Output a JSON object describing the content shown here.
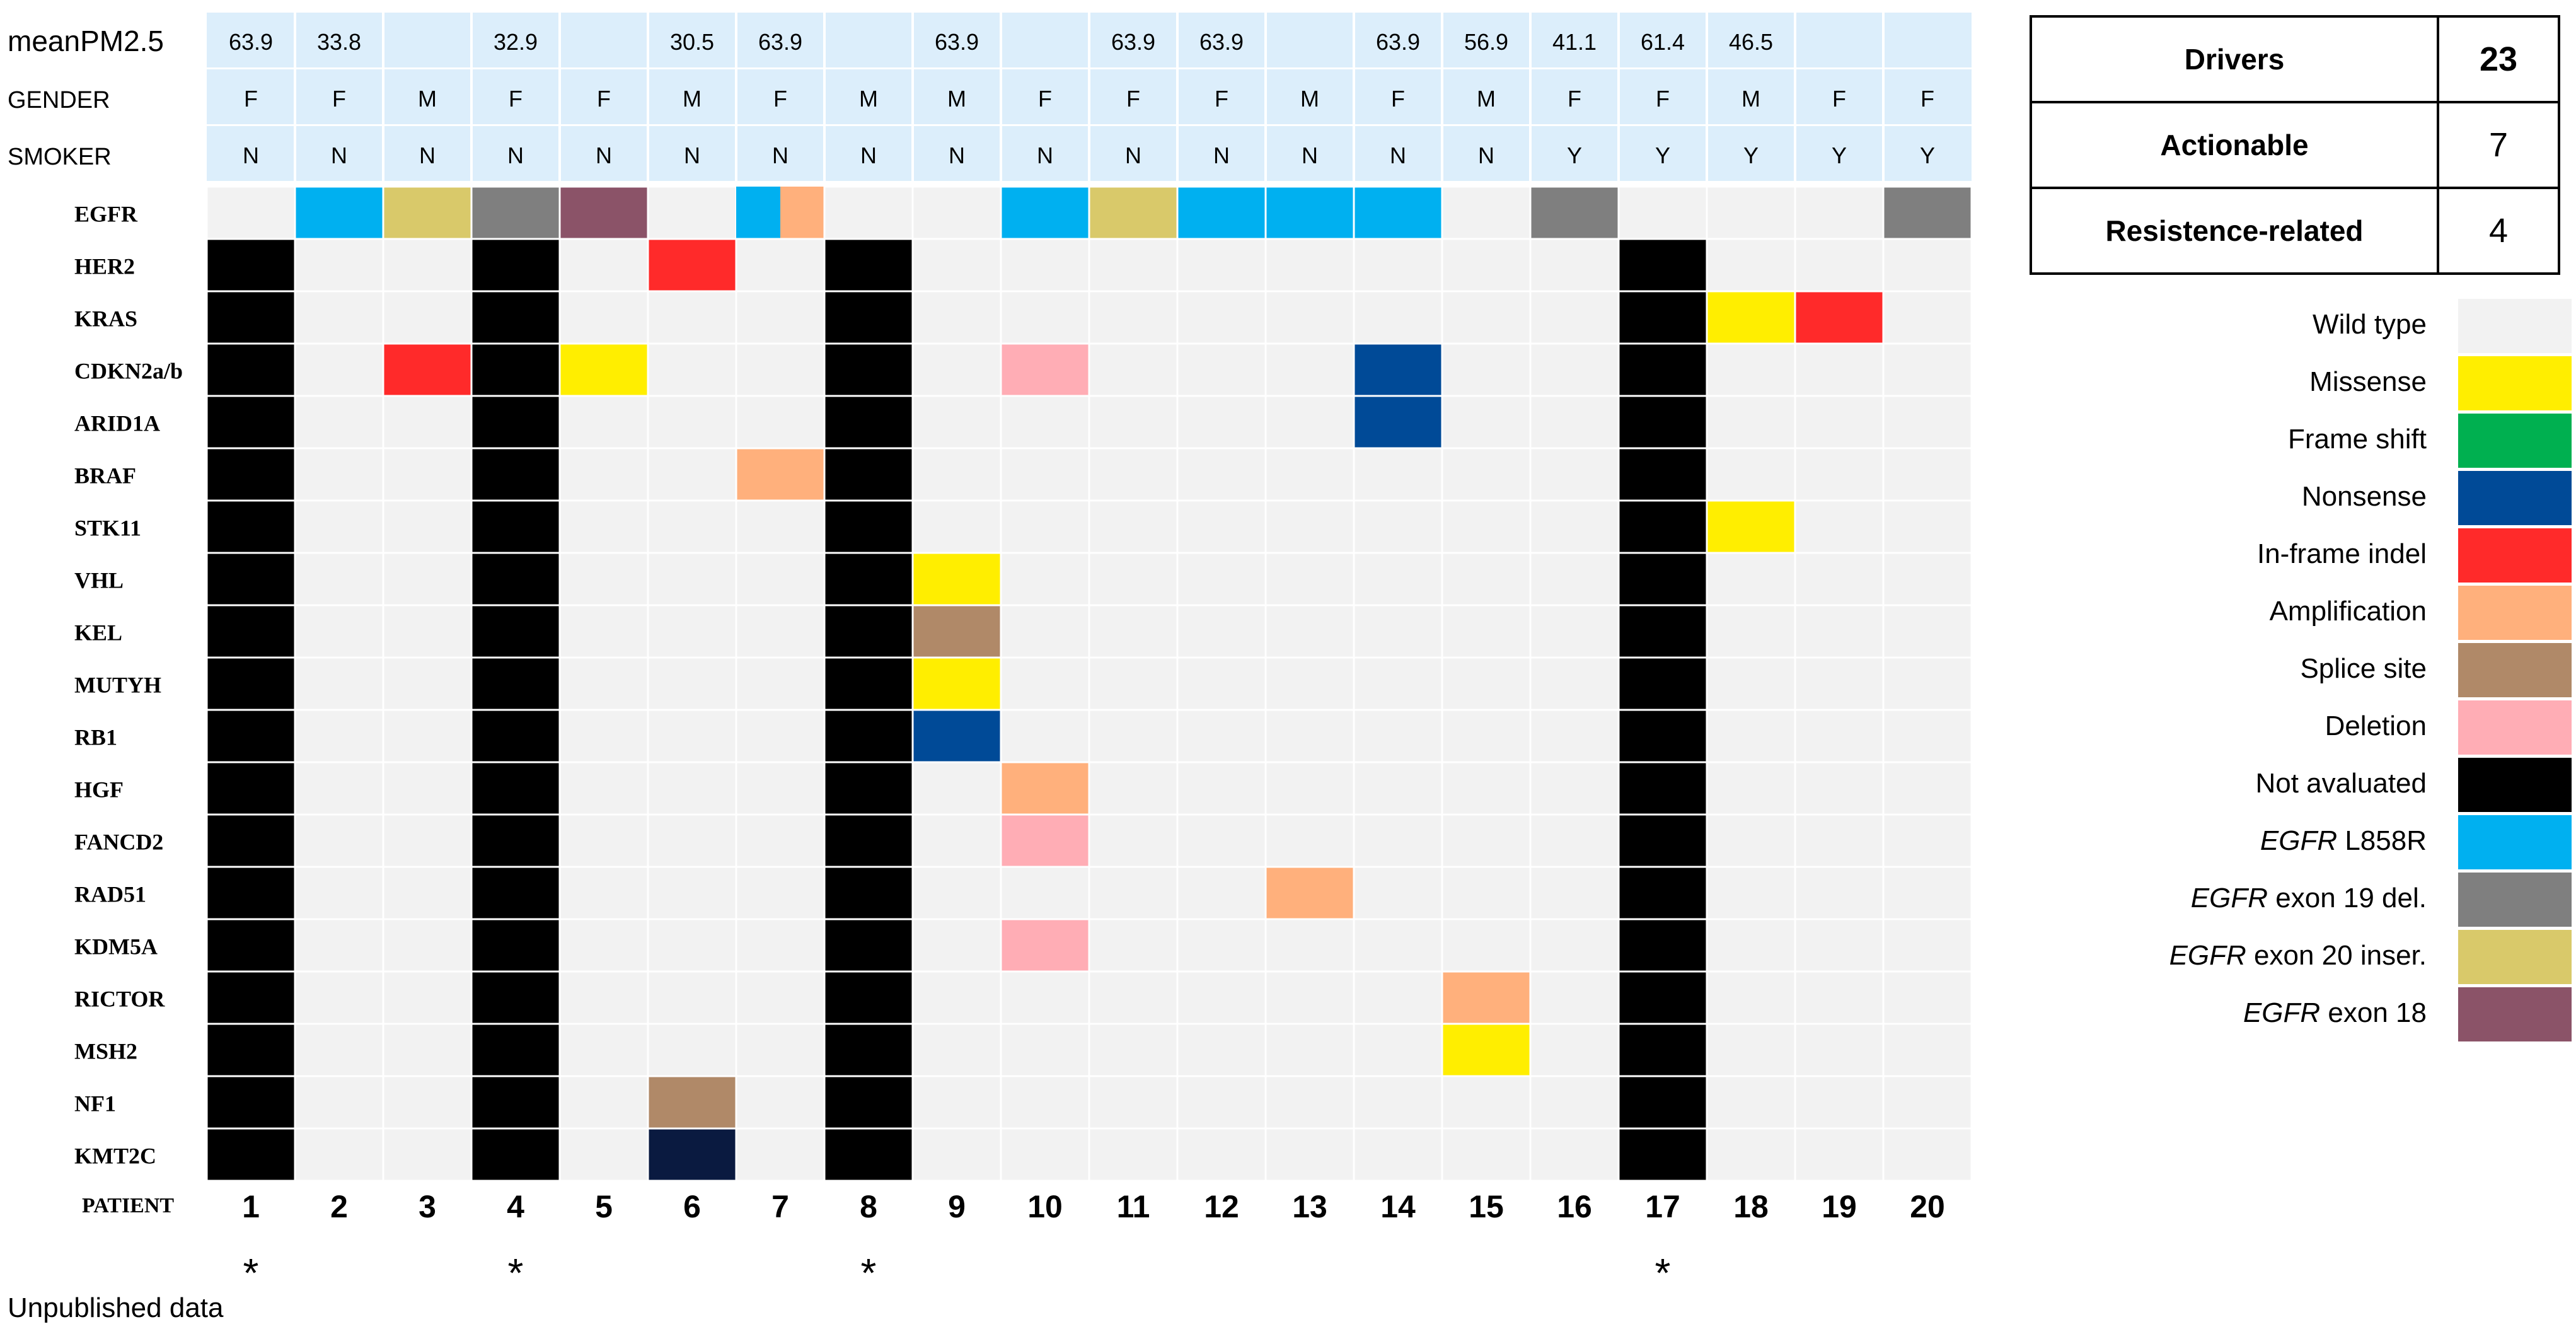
{
  "chart_data": {
    "type": "heatmap",
    "header_rows": [
      {
        "label": "meanPM2.5",
        "values": [
          "63.9",
          "33.8",
          "",
          "32.9",
          "",
          "30.5",
          "63.9",
          "",
          "63.9",
          "",
          "63.9",
          "63.9",
          "",
          "63.9",
          "56.9",
          "41.1",
          "61.4",
          "46.5",
          "",
          ""
        ]
      },
      {
        "label": "GENDER",
        "values": [
          "F",
          "F",
          "M",
          "F",
          "F",
          "M",
          "F",
          "M",
          "M",
          "F",
          "F",
          "F",
          "M",
          "F",
          "M",
          "F",
          "F",
          "M",
          "F",
          "F"
        ]
      },
      {
        "label": "SMOKER",
        "values": [
          "N",
          "N",
          "N",
          "N",
          "N",
          "N",
          "N",
          "N",
          "N",
          "N",
          "N",
          "N",
          "N",
          "N",
          "N",
          "Y",
          "Y",
          "Y",
          "Y",
          "Y"
        ]
      }
    ],
    "genes": [
      "EGFR",
      "HER2",
      "KRAS",
      "CDKN2a/b",
      "ARID1A",
      "BRAF",
      "STK11",
      "VHL",
      "KEL",
      "MUTYH",
      "RB1",
      "HGF",
      "FANCD2",
      "RAD51",
      "KDM5A",
      "RICTOR",
      "MSH2",
      "NF1",
      "KMT2C"
    ],
    "patient_axis_label": "PATIENT",
    "patients": [
      "1",
      "2",
      "3",
      "4",
      "5",
      "6",
      "7",
      "8",
      "9",
      "10",
      "11",
      "12",
      "13",
      "14",
      "15",
      "16",
      "17",
      "18",
      "19",
      "20"
    ],
    "not_evaluated_patients": [
      1,
      4,
      8,
      17
    ],
    "starred_patients": [
      1,
      4,
      8,
      17
    ],
    "star_symbol": "*",
    "egfr_row": [
      {
        "patient": 2,
        "status": "EGFR L858R"
      },
      {
        "patient": 3,
        "status": "EGFR exon 20 inser."
      },
      {
        "patient": 4,
        "status": "EGFR exon 19 del."
      },
      {
        "patient": 5,
        "status": "EGFR exon 18"
      },
      {
        "patient": 7,
        "status": "EGFR L858R",
        "secondary": "Amplification"
      },
      {
        "patient": 10,
        "status": "EGFR L858R"
      },
      {
        "patient": 11,
        "status": "EGFR exon 20 inser."
      },
      {
        "patient": 12,
        "status": "EGFR L858R"
      },
      {
        "patient": 13,
        "status": "EGFR L858R"
      },
      {
        "patient": 14,
        "status": "EGFR L858R"
      },
      {
        "patient": 16,
        "status": "EGFR exon 19 del."
      },
      {
        "patient": 20,
        "status": "EGFR exon 19 del."
      }
    ],
    "alterations": [
      {
        "gene": "HER2",
        "patient": 6,
        "status": "In-frame indel"
      },
      {
        "gene": "KRAS",
        "patient": 18,
        "status": "Missense"
      },
      {
        "gene": "KRAS",
        "patient": 19,
        "status": "In-frame indel"
      },
      {
        "gene": "CDKN2a/b",
        "patient": 3,
        "status": "In-frame indel"
      },
      {
        "gene": "CDKN2a/b",
        "patient": 5,
        "status": "Missense"
      },
      {
        "gene": "CDKN2a/b",
        "patient": 10,
        "status": "Deletion"
      },
      {
        "gene": "CDKN2a/b",
        "patient": 14,
        "status": "Nonsense"
      },
      {
        "gene": "ARID1A",
        "patient": 14,
        "status": "Nonsense"
      },
      {
        "gene": "BRAF",
        "patient": 7,
        "status": "Amplification"
      },
      {
        "gene": "STK11",
        "patient": 18,
        "status": "Missense"
      },
      {
        "gene": "VHL",
        "patient": 9,
        "status": "Missense"
      },
      {
        "gene": "KEL",
        "patient": 9,
        "status": "Splice site"
      },
      {
        "gene": "MUTYH",
        "patient": 9,
        "status": "Missense"
      },
      {
        "gene": "RB1",
        "patient": 9,
        "status": "Nonsense"
      },
      {
        "gene": "HGF",
        "patient": 10,
        "status": "Amplification"
      },
      {
        "gene": "FANCD2",
        "patient": 10,
        "status": "Deletion"
      },
      {
        "gene": "RAD51",
        "patient": 13,
        "status": "Amplification"
      },
      {
        "gene": "KDM5A",
        "patient": 10,
        "status": "Deletion"
      },
      {
        "gene": "RICTOR",
        "patient": 15,
        "status": "Amplification"
      },
      {
        "gene": "MSH2",
        "patient": 15,
        "status": "Missense"
      },
      {
        "gene": "NF1",
        "patient": 6,
        "status": "Splice site"
      },
      {
        "gene": "KMT2C",
        "patient": 6,
        "status": "Nonsense"
      }
    ],
    "legend": [
      {
        "key": "Wild type",
        "prefix": "",
        "label": "Wild type",
        "color": "#f2f2f2"
      },
      {
        "key": "Missense",
        "prefix": "",
        "label": "Missense",
        "color": "#ffee00"
      },
      {
        "key": "Frame shift",
        "prefix": "",
        "label": "Frame shift",
        "color": "#00b050"
      },
      {
        "key": "Nonsense",
        "prefix": "",
        "label": "Nonsense",
        "color": "#004a97"
      },
      {
        "key": "In-frame indel",
        "prefix": "",
        "label": "In-frame indel",
        "color": "#ff2a2a"
      },
      {
        "key": "Amplification",
        "prefix": "",
        "label": "Amplification",
        "color": "#ffb07c"
      },
      {
        "key": "Splice site",
        "prefix": "",
        "label": "Splice site",
        "color": "#b08968"
      },
      {
        "key": "Deletion",
        "prefix": "",
        "label": "Deletion",
        "color": "#ffadb5"
      },
      {
        "key": "Not avaluated",
        "prefix": "",
        "label": "Not avaluated",
        "color": "#000000"
      },
      {
        "key": "EGFR L858R",
        "prefix": "EGFR",
        "label": " L858R",
        "color": "#00b0f0"
      },
      {
        "key": "EGFR exon 19 del.",
        "prefix": "EGFR",
        "label": " exon 19 del.",
        "color": "#7f7f7f"
      },
      {
        "key": "EGFR exon 20 inser.",
        "prefix": "EGFR",
        "label": " exon 20 inser.",
        "color": "#d9c96a"
      },
      {
        "key": "EGFR exon 18",
        "prefix": "EGFR",
        "label": " exon 18",
        "color": "#8b5368"
      }
    ],
    "status_colors_extra": {
      "Nonsense (dark)": "#0a1a40"
    }
  },
  "summary": [
    {
      "label": "Drivers",
      "value": "23"
    },
    {
      "label": "Actionable",
      "value": "7"
    },
    {
      "label": "Resistence-related",
      "value": "4"
    }
  ],
  "note": "Unpublished data",
  "colors": {
    "header_band": "#dceefb",
    "cell_empty": "#f2f2f2",
    "grid_line": "#ffffff",
    "text": "#000000"
  }
}
